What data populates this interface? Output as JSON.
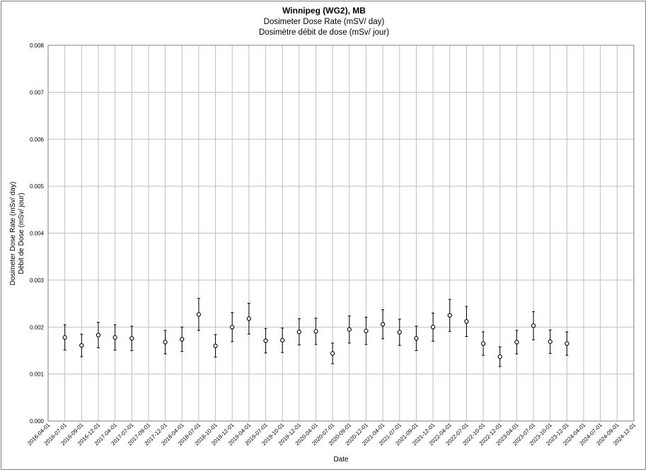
{
  "chart_data": {
    "type": "scatter",
    "title": "Winnipeg (WG2), MB",
    "subtitle_en": "Dosimeter Dose Rate (mSV/ day)",
    "subtitle_fr": "Dosimètre débit de dose (mSv/ jour)",
    "xlabel": "Date",
    "ylabel_en": "Dosimeter Dose Rate (mSv/ day)",
    "ylabel_fr": "Débit de Dose (mSv/ jour)",
    "ylim": [
      0,
      0.008
    ],
    "yticks": [
      "0.000",
      "0.001",
      "0.002",
      "0.003",
      "0.004",
      "0.005",
      "0.006",
      "0.007",
      "0.008"
    ],
    "grid": true,
    "legend": "none",
    "colors": {
      "marker_stroke": "#000000",
      "grid": "#bfbfbf",
      "frame": "#7f7f7f"
    },
    "categories": [
      "2016-04-01",
      "2016-07-01",
      "2016-09-01",
      "2016-12-01",
      "2017-04-01",
      "2017-07-01",
      "2017-09-01",
      "2017-12-01",
      "2018-04-01",
      "2018-07-01",
      "2018-10-01",
      "2018-12-01",
      "2019-04-01",
      "2019-07-01",
      "2019-10-01",
      "2019-12-01",
      "2020-04-01",
      "2020-07-01",
      "2020-09-01",
      "2020-12-01",
      "2021-04-01",
      "2021-07-01",
      "2021-09-01",
      "2021-12-01",
      "2022-04-01",
      "2022-07-01",
      "2022-10-01",
      "2022-12-01",
      "2023-04-01",
      "2023-07-01",
      "2023-10-01",
      "2023-12-01",
      "2024-04-01",
      "2024-07-01",
      "2024-09-01",
      "2024-12-01"
    ],
    "points": [
      {
        "x": "2016-07-01",
        "y": 0.00178,
        "err": 0.00027
      },
      {
        "x": "2016-09-01",
        "y": 0.00161,
        "err": 0.00024
      },
      {
        "x": "2016-12-01",
        "y": 0.00183,
        "err": 0.00027
      },
      {
        "x": "2017-04-01",
        "y": 0.00178,
        "err": 0.00027
      },
      {
        "x": "2017-07-01",
        "y": 0.00176,
        "err": 0.00026
      },
      {
        "x": "2017-12-01",
        "y": 0.00168,
        "err": 0.00025
      },
      {
        "x": "2018-04-01",
        "y": 0.00174,
        "err": 0.00026
      },
      {
        "x": "2018-07-01",
        "y": 0.00227,
        "err": 0.00034
      },
      {
        "x": "2018-10-01",
        "y": 0.0016,
        "err": 0.00024
      },
      {
        "x": "2018-12-01",
        "y": 0.002,
        "err": 0.00031
      },
      {
        "x": "2019-04-01",
        "y": 0.00218,
        "err": 0.00033
      },
      {
        "x": "2019-07-01",
        "y": 0.00171,
        "err": 0.00026
      },
      {
        "x": "2019-10-01",
        "y": 0.00172,
        "err": 0.00026
      },
      {
        "x": "2019-12-01",
        "y": 0.0019,
        "err": 0.00028
      },
      {
        "x": "2020-04-01",
        "y": 0.00191,
        "err": 0.00028
      },
      {
        "x": "2020-07-01",
        "y": 0.00144,
        "err": 0.00022
      },
      {
        "x": "2020-09-01",
        "y": 0.00195,
        "err": 0.00029
      },
      {
        "x": "2020-12-01",
        "y": 0.00192,
        "err": 0.00029
      },
      {
        "x": "2021-04-01",
        "y": 0.00206,
        "err": 0.00031
      },
      {
        "x": "2021-07-01",
        "y": 0.00189,
        "err": 0.00028
      },
      {
        "x": "2021-09-01",
        "y": 0.00176,
        "err": 0.00026
      },
      {
        "x": "2021-12-01",
        "y": 0.002,
        "err": 0.0003
      },
      {
        "x": "2022-04-01",
        "y": 0.00225,
        "err": 0.00034
      },
      {
        "x": "2022-07-01",
        "y": 0.00212,
        "err": 0.00032
      },
      {
        "x": "2022-10-01",
        "y": 0.00165,
        "err": 0.00025
      },
      {
        "x": "2022-12-01",
        "y": 0.00137,
        "err": 0.00021
      },
      {
        "x": "2023-04-01",
        "y": 0.00168,
        "err": 0.00025
      },
      {
        "x": "2023-07-01",
        "y": 0.00203,
        "err": 0.0003
      },
      {
        "x": "2023-10-01",
        "y": 0.00169,
        "err": 0.00025
      },
      {
        "x": "2023-12-01",
        "y": 0.00165,
        "err": 0.00025
      }
    ]
  }
}
